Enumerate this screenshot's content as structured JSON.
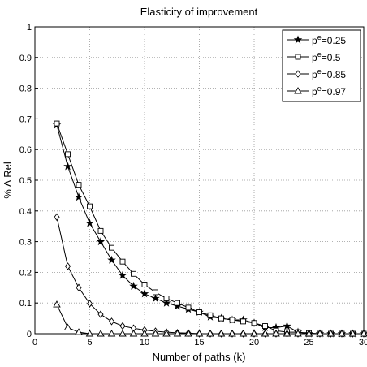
{
  "chart_data": {
    "type": "line",
    "title": "Elasticity of improvement",
    "x_label": "Number of paths (k)",
    "y_label": "% Δ Rel",
    "x": [
      2,
      3,
      4,
      5,
      6,
      7,
      8,
      9,
      10,
      11,
      12,
      13,
      14,
      15,
      16,
      17,
      18,
      19,
      20,
      21,
      22,
      23,
      24,
      25,
      26,
      27,
      28,
      29,
      30
    ],
    "series": [
      {
        "name": "pe=0.25",
        "marker": "star",
        "color": "#000000",
        "values": [
          0.68,
          0.545,
          0.445,
          0.36,
          0.3,
          0.24,
          0.19,
          0.155,
          0.13,
          0.115,
          0.1,
          0.09,
          0.08,
          0.07,
          0.055,
          0.05,
          0.045,
          0.045,
          0.035,
          0.02,
          0.02,
          0.025,
          0.005,
          0,
          0,
          0,
          0,
          0,
          0
        ]
      },
      {
        "name": "pe=0.5",
        "marker": "square",
        "color": "#000000",
        "values": [
          0.685,
          0.585,
          0.485,
          0.415,
          0.335,
          0.28,
          0.235,
          0.195,
          0.16,
          0.135,
          0.115,
          0.1,
          0.085,
          0.07,
          0.06,
          0.05,
          0.045,
          0.04,
          0.035,
          0.025,
          0.01,
          0.005,
          0.005,
          0.002,
          0,
          0,
          0,
          0,
          0
        ]
      },
      {
        "name": "pe=0.85",
        "marker": "diamond",
        "color": "#000000",
        "values": [
          0.38,
          0.22,
          0.15,
          0.098,
          0.063,
          0.04,
          0.025,
          0.018,
          0.012,
          0.008,
          0.005,
          0.003,
          0.002,
          0,
          0,
          0,
          0,
          0,
          0,
          0,
          0,
          0,
          0,
          0,
          0,
          0,
          0,
          0,
          0
        ]
      },
      {
        "name": "pe=0.97",
        "marker": "triangle",
        "color": "#000000",
        "values": [
          0.095,
          0.02,
          0.005,
          0,
          0,
          0,
          0,
          0,
          0,
          0,
          0,
          0,
          0,
          0,
          0,
          0,
          0,
          0,
          0,
          0,
          0,
          0,
          0,
          0,
          0,
          0,
          0,
          0,
          0
        ]
      }
    ],
    "xlim": [
      0,
      30
    ],
    "ylim": [
      0,
      1
    ],
    "xticks": [
      0,
      5,
      10,
      15,
      20,
      25,
      30
    ],
    "yticks": [
      0,
      0.1,
      0.2,
      0.3,
      0.4,
      0.5,
      0.6,
      0.7,
      0.8,
      0.9,
      1
    ],
    "grid": true,
    "legend": "upper right"
  }
}
